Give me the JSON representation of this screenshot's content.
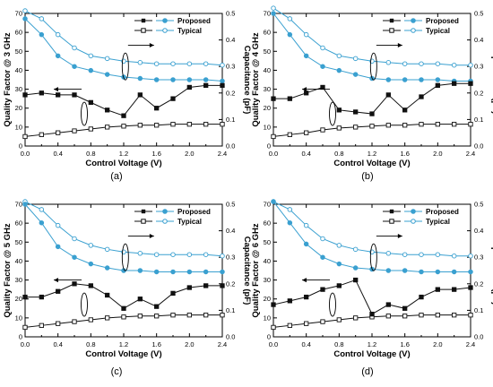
{
  "chart_data": [
    {
      "type": "line",
      "panel_label": "(a)",
      "ylabel_left": "Quality Factor @ 3 GHz",
      "ylabel_right": "Capacitance (pF)",
      "xlabel": "Control Voltage (V)",
      "xlim": [
        0,
        2.4
      ],
      "ylim_left": [
        0,
        70
      ],
      "ylim_right": [
        0,
        0.5
      ],
      "x": [
        0,
        0.2,
        0.4,
        0.6,
        0.8,
        1.0,
        1.2,
        1.4,
        1.6,
        1.8,
        2.0,
        2.2,
        2.4
      ],
      "q_proposed": [
        27,
        28,
        27,
        27,
        23,
        19,
        16,
        27,
        20,
        25,
        31,
        32,
        32
      ],
      "q_typical": [
        5,
        6,
        7,
        8,
        9,
        10,
        10.5,
        11,
        11,
        11.5,
        11.5,
        11.5,
        11.5
      ],
      "c_proposed": [
        0.48,
        0.42,
        0.34,
        0.3,
        0.285,
        0.27,
        0.26,
        0.255,
        0.25,
        0.25,
        0.25,
        0.25,
        0.245
      ],
      "c_typical": [
        0.51,
        0.48,
        0.42,
        0.37,
        0.34,
        0.33,
        0.32,
        0.315,
        0.31,
        0.31,
        0.31,
        0.31,
        0.305
      ]
    },
    {
      "type": "line",
      "panel_label": "(b)",
      "ylabel_left": "Quality Factor @ 4 GHz",
      "ylabel_right": "Capacitance (pF)",
      "xlabel": "Control Voltage (V)",
      "xlim": [
        0,
        2.4
      ],
      "ylim_left": [
        0,
        70
      ],
      "ylim_right": [
        0,
        0.5
      ],
      "x": [
        0,
        0.2,
        0.4,
        0.6,
        0.8,
        1.0,
        1.2,
        1.4,
        1.6,
        1.8,
        2.0,
        2.2,
        2.4
      ],
      "q_proposed": [
        25,
        25,
        28,
        31,
        19,
        18,
        17,
        27,
        19,
        26,
        32,
        33,
        33
      ],
      "q_typical": [
        5,
        6,
        7,
        8.5,
        9.5,
        10,
        10.5,
        11,
        11,
        11.5,
        11.5,
        11.5,
        11.5
      ],
      "c_proposed": [
        0.5,
        0.42,
        0.34,
        0.3,
        0.285,
        0.27,
        0.255,
        0.25,
        0.25,
        0.25,
        0.25,
        0.245,
        0.245
      ],
      "c_typical": [
        0.52,
        0.48,
        0.42,
        0.37,
        0.34,
        0.33,
        0.32,
        0.315,
        0.31,
        0.31,
        0.31,
        0.305,
        0.305
      ]
    },
    {
      "type": "line",
      "panel_label": "(c)",
      "ylabel_left": "Quality Factor @ 5 GHz",
      "ylabel_right": "Capacitance (pF)",
      "xlabel": "Control Voltage (V)",
      "xlim": [
        0,
        2.4
      ],
      "ylim_left": [
        0,
        70
      ],
      "ylim_right": [
        0,
        0.5
      ],
      "x": [
        0,
        0.2,
        0.4,
        0.6,
        0.8,
        1.0,
        1.2,
        1.4,
        1.6,
        1.8,
        2.0,
        2.2,
        2.4
      ],
      "q_proposed": [
        21,
        21,
        24,
        28,
        27,
        22,
        15,
        20,
        16,
        23,
        26,
        27,
        27
      ],
      "q_typical": [
        5,
        6,
        7,
        8,
        9,
        10,
        10.5,
        11,
        11,
        11.5,
        11.5,
        11.5,
        11.5
      ],
      "c_proposed": [
        0.5,
        0.43,
        0.34,
        0.3,
        0.275,
        0.26,
        0.25,
        0.25,
        0.245,
        0.245,
        0.245,
        0.245,
        0.245
      ],
      "c_typical": [
        0.51,
        0.48,
        0.42,
        0.37,
        0.345,
        0.33,
        0.32,
        0.315,
        0.31,
        0.31,
        0.31,
        0.31,
        0.305
      ]
    },
    {
      "type": "line",
      "panel_label": "(d)",
      "ylabel_left": "Quality Factor @ 6 GHz",
      "ylabel_right": "Capacitance (pF)",
      "xlabel": "Control Voltage (V)",
      "xlim": [
        0,
        2.4
      ],
      "ylim_left": [
        0,
        70
      ],
      "ylim_right": [
        0,
        0.5
      ],
      "x": [
        0,
        0.2,
        0.4,
        0.6,
        0.8,
        1.0,
        1.2,
        1.4,
        1.6,
        1.8,
        2.0,
        2.2,
        2.4
      ],
      "q_proposed": [
        17,
        19,
        21,
        25,
        27,
        30,
        12,
        17,
        15,
        21,
        25,
        25,
        26
      ],
      "q_typical": [
        5,
        6,
        7,
        8,
        9,
        10,
        10.5,
        11,
        11,
        11.5,
        11.5,
        11.5,
        11.5
      ],
      "c_proposed": [
        0.51,
        0.43,
        0.35,
        0.3,
        0.275,
        0.26,
        0.255,
        0.25,
        0.25,
        0.245,
        0.245,
        0.245,
        0.245
      ],
      "c_typical": [
        0.51,
        0.48,
        0.42,
        0.37,
        0.345,
        0.33,
        0.32,
        0.315,
        0.31,
        0.31,
        0.31,
        0.305,
        0.305
      ]
    }
  ],
  "legend": {
    "proposed": "Proposed",
    "typical": "Typical"
  },
  "ticks": {
    "x": [
      "0.0",
      "0.4",
      "0.8",
      "1.2",
      "1.6",
      "2.0",
      "2.4"
    ],
    "y_left": [
      "0",
      "10",
      "20",
      "30",
      "40",
      "50",
      "60",
      "70"
    ],
    "y_right": [
      "0.0",
      "0.1",
      "0.2",
      "0.3",
      "0.4",
      "0.5"
    ]
  },
  "colors": {
    "q_series": "#111111",
    "c_series": "#3aa0d0",
    "axis": "#000000"
  }
}
